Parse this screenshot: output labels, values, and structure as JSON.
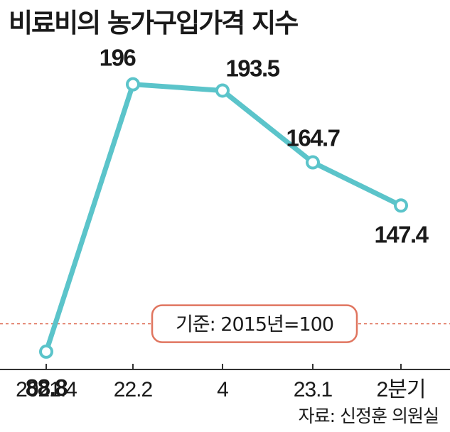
{
  "title": "비료비의 농가구입가격 지수",
  "source": "자료: 신정훈 의원실",
  "colors": {
    "line": "#5bc4ca",
    "reference": "#e0755f",
    "axis": "#333333"
  },
  "chart_data": {
    "type": "line",
    "title": "비료비의 농가구입가격 지수",
    "categories": [
      "2021.4",
      "22.2",
      "4",
      "23.1",
      "2분기"
    ],
    "series": [
      {
        "values": [
          88.8,
          196,
          193.5,
          164.7,
          147.4
        ]
      }
    ],
    "value_labels": [
      "88.8",
      "196",
      "193.5",
      "164.7",
      "147.4"
    ],
    "reference_line": {
      "value": 100,
      "label": "기준: 2015년=100",
      "style": "dashed"
    },
    "ylim": [
      60,
      215
    ],
    "grid": false,
    "legend": "none"
  }
}
